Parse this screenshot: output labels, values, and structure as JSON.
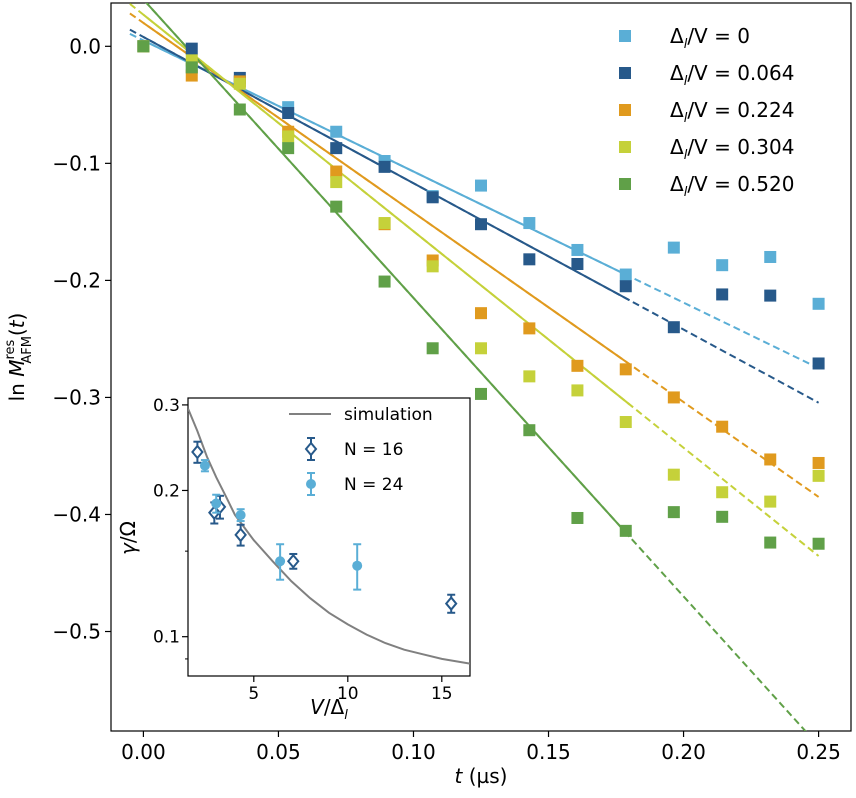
{
  "chart_data": [
    {
      "type": "scatter",
      "role": "main",
      "title": "",
      "xlabel": "t (µs)",
      "ylabel": "ln M_AFM^res(t)",
      "xlim": [
        -0.012,
        0.262
      ],
      "ylim": [
        -0.585,
        0.037
      ],
      "xticks": [
        0.0,
        0.05,
        0.1,
        0.15,
        0.2,
        0.25
      ],
      "xtick_labels": [
        "0.00",
        "0.05",
        "0.10",
        "0.15",
        "0.20",
        "0.25"
      ],
      "yticks": [
        0.0,
        -0.1,
        -0.2,
        -0.3,
        -0.4,
        -0.5
      ],
      "ytick_labels": [
        "0.0",
        "−0.1",
        "−0.2",
        "−0.3",
        "−0.4",
        "−0.5"
      ],
      "grid": false,
      "legend_position": "top-right",
      "x": [
        0.0,
        0.0179,
        0.0357,
        0.0536,
        0.0714,
        0.0893,
        0.1071,
        0.125,
        0.1429,
        0.1607,
        0.1786,
        0.1964,
        0.2143,
        0.2321,
        0.25
      ],
      "series": [
        {
          "name": "Δ_l/V = 0",
          "label_parts": [
            "Δ",
            "l",
            "/V = 0"
          ],
          "color": "#5aaed6",
          "values": [
            0.0,
            -0.018,
            -0.03,
            -0.052,
            -0.073,
            -0.098,
            -0.128,
            -0.119,
            -0.151,
            -0.174,
            -0.195,
            -0.172,
            -0.187,
            -0.18,
            -0.22
          ],
          "fit": {
            "intercept": 0.005,
            "slope": -1.12,
            "x_solid_end": 0.18,
            "x_dashed_start": -0.005,
            "x_dashed_end": 0.25
          }
        },
        {
          "name": "Δ_l/V = 0.064",
          "label_parts": [
            "Δ",
            "l",
            "/V = 0.064"
          ],
          "color": "#27598a",
          "values": [
            0.0,
            -0.002,
            -0.027,
            -0.057,
            -0.087,
            -0.103,
            -0.129,
            -0.152,
            -0.182,
            -0.186,
            -0.205,
            -0.24,
            -0.212,
            -0.213,
            -0.271
          ],
          "fit": {
            "intercept": 0.008,
            "slope": -1.25,
            "x_solid_end": 0.18,
            "x_dashed_start": -0.005,
            "x_dashed_end": 0.25
          }
        },
        {
          "name": "Δ_l/V = 0.224",
          "label_parts": [
            "Δ",
            "l",
            "/V = 0.224"
          ],
          "color": "#e09a1e",
          "values": [
            0.0,
            -0.025,
            -0.03,
            -0.073,
            -0.107,
            -0.152,
            -0.183,
            -0.228,
            -0.241,
            -0.273,
            -0.276,
            -0.3,
            -0.325,
            -0.353,
            -0.356
          ],
          "fit": {
            "intercept": 0.02,
            "slope": -1.62,
            "x_solid_end": 0.18,
            "x_dashed_start": -0.005,
            "x_dashed_end": 0.25
          }
        },
        {
          "name": "Δ_l/V = 0.304",
          "label_parts": [
            "Δ",
            "l",
            "/V = 0.304"
          ],
          "color": "#c5d13a",
          "values": [
            0.0,
            -0.012,
            -0.032,
            -0.077,
            -0.116,
            -0.151,
            -0.188,
            -0.258,
            -0.282,
            -0.294,
            -0.321,
            -0.366,
            -0.381,
            -0.389,
            -0.367
          ],
          "fit": {
            "intercept": 0.027,
            "slope": -1.85,
            "x_solid_end": 0.18,
            "x_dashed_start": -0.005,
            "x_dashed_end": 0.25
          }
        },
        {
          "name": "Δ_l/V = 0.520",
          "label_parts": [
            "Δ",
            "l",
            "/V = 0.520"
          ],
          "color": "#60a048",
          "values": [
            0.0,
            -0.018,
            -0.054,
            -0.087,
            -0.137,
            -0.201,
            -0.258,
            -0.297,
            -0.328,
            -0.403,
            -0.414,
            -0.398,
            -0.402,
            -0.424,
            -0.425
          ],
          "fit": {
            "intercept": 0.04,
            "slope": -2.55,
            "x_solid_end": 0.18,
            "x_dashed_start": -0.005,
            "x_dashed_end": 0.25
          }
        }
      ]
    },
    {
      "type": "scatter",
      "role": "inset",
      "title": "",
      "xlabel": "V/Δ_l",
      "ylabel": "γ/Ω",
      "yscale": "log",
      "xlim": [
        1.5,
        16.5
      ],
      "ylim": [
        0.083,
        0.31
      ],
      "xticks": [
        5,
        10,
        15
      ],
      "xtick_labels": [
        "5",
        "10",
        "15"
      ],
      "yticks": [
        0.1,
        0.2,
        0.3
      ],
      "ytick_labels": [
        "0.1",
        "0.2",
        "0.3"
      ],
      "grid": false,
      "legend_position": "top-right",
      "series": [
        {
          "name": "simulation",
          "style": "line",
          "color": "#808080",
          "x": [
            1.5,
            2.0,
            2.5,
            3.0,
            3.5,
            4.0,
            5.0,
            6.0,
            7.0,
            8.0,
            9.0,
            10.0,
            11.0,
            12.0,
            13.0,
            14.0,
            15.0,
            16.5
          ],
          "values": [
            0.295,
            0.265,
            0.235,
            0.213,
            0.195,
            0.178,
            0.158,
            0.143,
            0.13,
            0.12,
            0.112,
            0.106,
            0.101,
            0.097,
            0.094,
            0.092,
            0.09,
            0.088
          ]
        },
        {
          "name": "N = 16",
          "style": "open-diamond",
          "color": "#27598a",
          "x": [
            2.0,
            3.2,
            2.9,
            4.3,
            7.1,
            15.5
          ],
          "values": [
            0.24,
            0.185,
            0.18,
            0.162,
            0.143,
            0.117
          ],
          "errors": [
            0.012,
            0.01,
            0.009,
            0.008,
            0.005,
            0.005
          ]
        },
        {
          "name": "N = 24",
          "style": "filled-circle",
          "color": "#5aaed6",
          "x": [
            2.4,
            3.0,
            4.3,
            6.4,
            10.5
          ],
          "values": [
            0.225,
            0.188,
            0.178,
            0.143,
            0.14
          ],
          "errors": [
            0.006,
            0.008,
            0.005,
            0.012,
            0.015
          ]
        }
      ]
    }
  ]
}
